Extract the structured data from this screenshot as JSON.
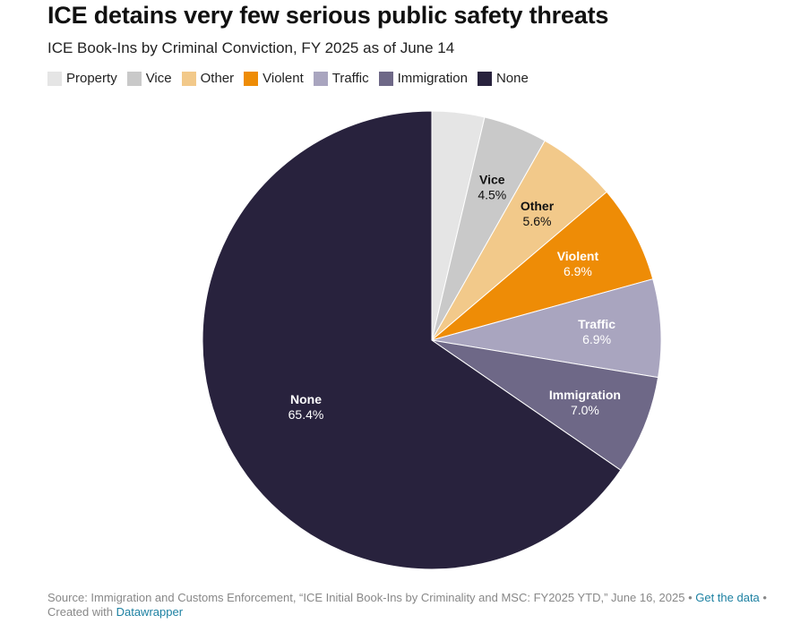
{
  "title": "ICE detains very few serious public safety threats",
  "subtitle": "ICE Book-Ins by Criminal Conviction, FY 2025 as of June 14",
  "legend": [
    {
      "label": "Property",
      "color": "#e5e5e5"
    },
    {
      "label": "Vice",
      "color": "#c9c9c9"
    },
    {
      "label": "Other",
      "color": "#f2c98a"
    },
    {
      "label": "Violent",
      "color": "#ee8c06"
    },
    {
      "label": "Traffic",
      "color": "#a9a5bf"
    },
    {
      "label": "Immigration",
      "color": "#6e6887"
    },
    {
      "label": "None",
      "color": "#28223d"
    }
  ],
  "chart_data": {
    "type": "pie",
    "title": "ICE detains very few serious public safety threats",
    "subtitle": "ICE Book-Ins by Criminal Conviction, FY 2025 as of June 14",
    "categories": [
      "Property",
      "Vice",
      "Other",
      "Violent",
      "Traffic",
      "Immigration",
      "None"
    ],
    "values": [
      3.7,
      4.5,
      5.6,
      6.9,
      6.9,
      7.0,
      65.4
    ],
    "unit": "%",
    "labels": [
      {
        "name": "Property",
        "value_label": null
      },
      {
        "name": "Vice",
        "value_label": "4.5%"
      },
      {
        "name": "Other",
        "value_label": "5.6%"
      },
      {
        "name": "Violent",
        "value_label": "6.9%"
      },
      {
        "name": "Traffic",
        "value_label": "6.9%"
      },
      {
        "name": "Immigration",
        "value_label": "7.0%"
      },
      {
        "name": "None",
        "value_label": "65.4%"
      }
    ],
    "colors": [
      "#e5e5e5",
      "#c9c9c9",
      "#f2c98a",
      "#ee8c06",
      "#a9a5bf",
      "#6e6887",
      "#28223d"
    ],
    "label_colors": [
      "#111111",
      "#111111",
      "#111111",
      "#ffffff",
      "#ffffff",
      "#ffffff",
      "#ffffff"
    ],
    "legend_position": "top-left",
    "start": "12 o'clock",
    "direction": "clockwise"
  },
  "footer": {
    "source_text": "Source: Immigration and Customs Enforcement, “ICE Initial Book-Ins by Criminality and MSC: FY2025 YTD,” June 16, 2025 • ",
    "get_data_link": "Get the data",
    "separator": " •",
    "created_prefix": "Created with ",
    "datawrapper_link": "Datawrapper"
  }
}
